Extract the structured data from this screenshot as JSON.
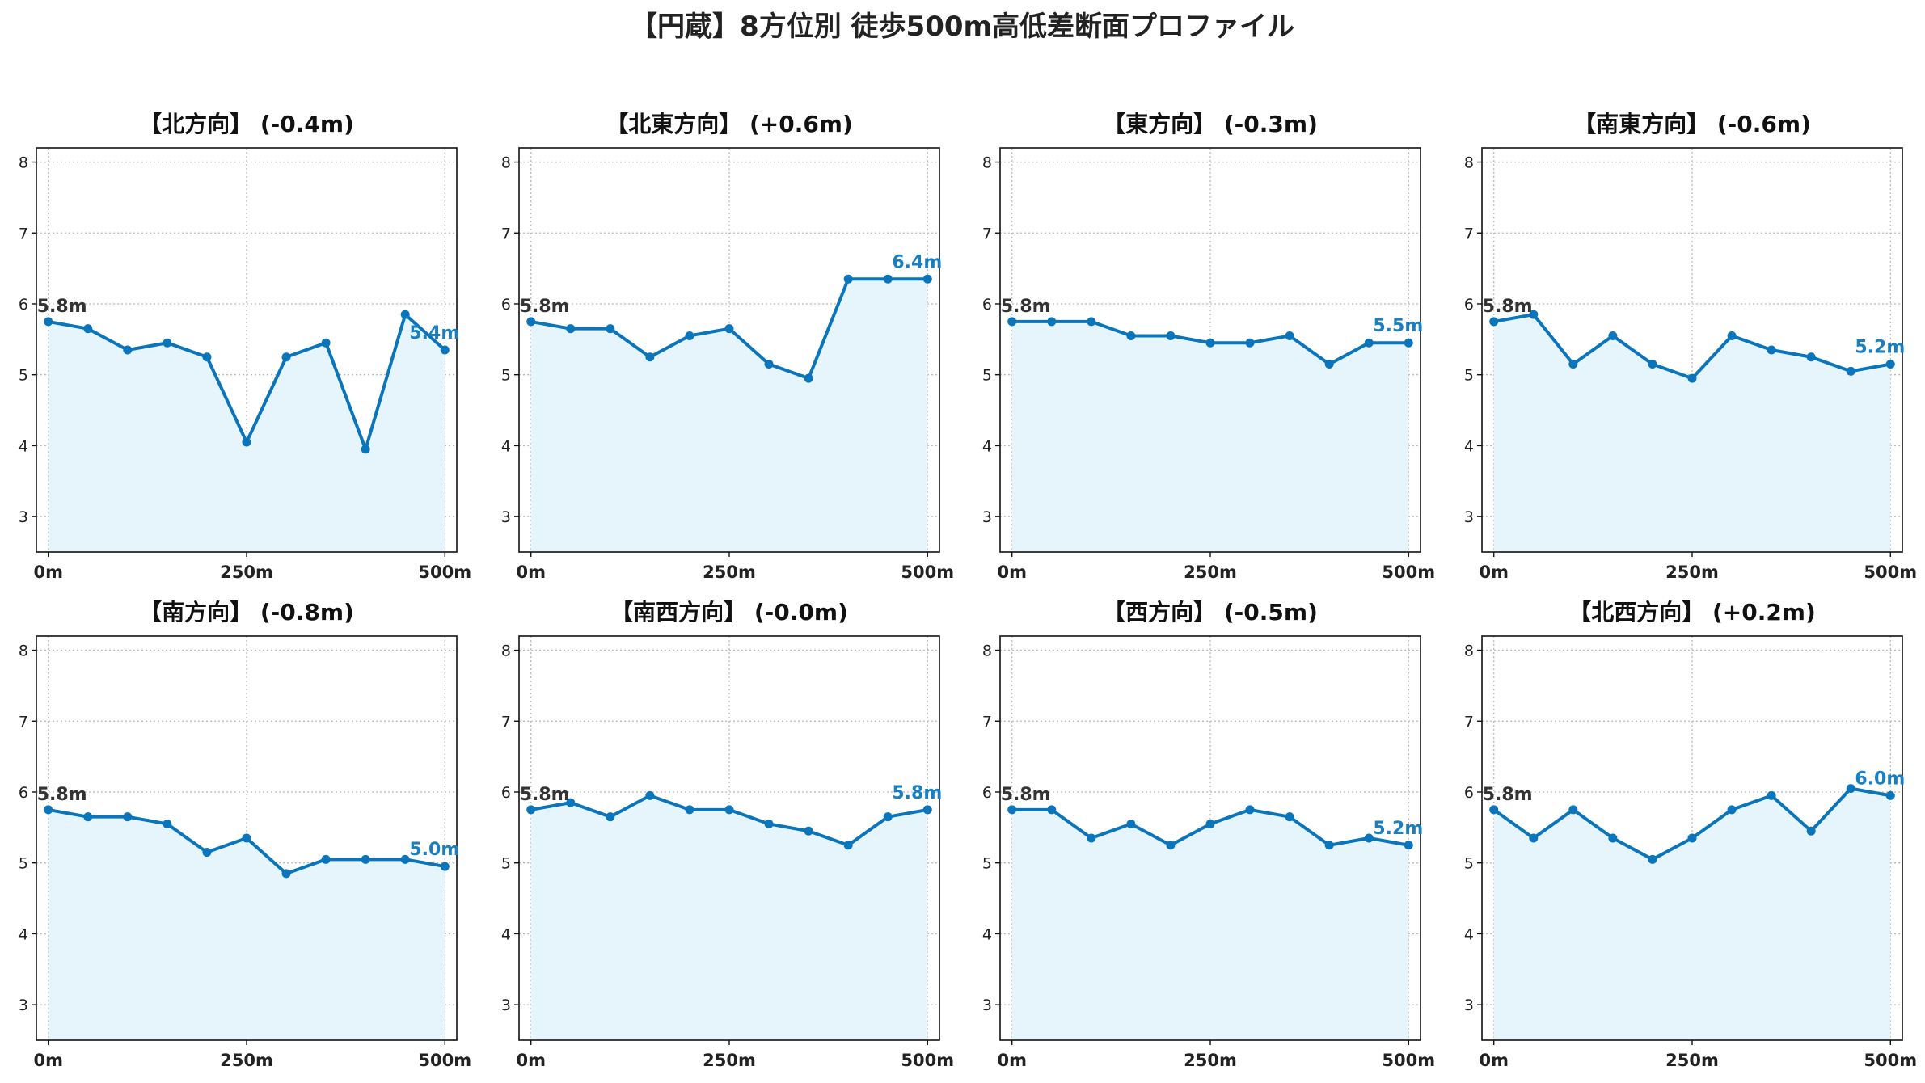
{
  "figure": {
    "suptitle": "【円蔵】8方位別 徒歩500m高低差断面プロファイル"
  },
  "colors": {
    "line": "#0a75bb",
    "fill": "#e6f5fb",
    "end_label": "#1a7fc0",
    "start_label": "#333333",
    "grid": "#bbbbbb"
  },
  "chart_data": [
    {
      "type": "area",
      "title": "【北方向】 (-0.4m)",
      "x": [
        0,
        50,
        100,
        150,
        200,
        250,
        300,
        350,
        400,
        450,
        500
      ],
      "y": [
        5.75,
        5.65,
        5.35,
        5.45,
        5.25,
        4.05,
        5.25,
        5.45,
        3.95,
        5.85,
        5.35
      ],
      "start_label": "5.8m",
      "end_label": "5.4m",
      "xticks": [
        "0m",
        "250m",
        "500m"
      ],
      "xtick_values": [
        0,
        250,
        500
      ],
      "yticks": [
        "3",
        "4",
        "5",
        "6",
        "7",
        "8"
      ],
      "ytick_values": [
        3,
        4,
        5,
        6,
        7,
        8
      ],
      "ylim": [
        2.5,
        8.2
      ],
      "xlim": [
        -15,
        515
      ],
      "grid": true
    },
    {
      "type": "area",
      "title": "【北東方向】 (+0.6m)",
      "x": [
        0,
        50,
        100,
        150,
        200,
        250,
        300,
        350,
        400,
        450,
        500
      ],
      "y": [
        5.75,
        5.65,
        5.65,
        5.25,
        5.55,
        5.65,
        5.15,
        4.95,
        6.35,
        6.35,
        6.35
      ],
      "start_label": "5.8m",
      "end_label": "6.4m",
      "xticks": [
        "0m",
        "250m",
        "500m"
      ],
      "xtick_values": [
        0,
        250,
        500
      ],
      "yticks": [
        "3",
        "4",
        "5",
        "6",
        "7",
        "8"
      ],
      "ytick_values": [
        3,
        4,
        5,
        6,
        7,
        8
      ],
      "ylim": [
        2.5,
        8.2
      ],
      "xlim": [
        -15,
        515
      ],
      "grid": true
    },
    {
      "type": "area",
      "title": "【東方向】 (-0.3m)",
      "x": [
        0,
        50,
        100,
        150,
        200,
        250,
        300,
        350,
        400,
        450,
        500
      ],
      "y": [
        5.75,
        5.75,
        5.75,
        5.55,
        5.55,
        5.45,
        5.45,
        5.55,
        5.15,
        5.45,
        5.45
      ],
      "start_label": "5.8m",
      "end_label": "5.5m",
      "xticks": [
        "0m",
        "250m",
        "500m"
      ],
      "xtick_values": [
        0,
        250,
        500
      ],
      "yticks": [
        "3",
        "4",
        "5",
        "6",
        "7",
        "8"
      ],
      "ytick_values": [
        3,
        4,
        5,
        6,
        7,
        8
      ],
      "ylim": [
        2.5,
        8.2
      ],
      "xlim": [
        -15,
        515
      ],
      "grid": true
    },
    {
      "type": "area",
      "title": "【南東方向】 (-0.6m)",
      "x": [
        0,
        50,
        100,
        150,
        200,
        250,
        300,
        350,
        400,
        450,
        500
      ],
      "y": [
        5.75,
        5.85,
        5.15,
        5.55,
        5.15,
        4.95,
        5.55,
        5.35,
        5.25,
        5.05,
        5.15
      ],
      "start_label": "5.8m",
      "end_label": "5.2m",
      "xticks": [
        "0m",
        "250m",
        "500m"
      ],
      "xtick_values": [
        0,
        250,
        500
      ],
      "yticks": [
        "3",
        "4",
        "5",
        "6",
        "7",
        "8"
      ],
      "ytick_values": [
        3,
        4,
        5,
        6,
        7,
        8
      ],
      "ylim": [
        2.5,
        8.2
      ],
      "xlim": [
        -15,
        515
      ],
      "grid": true
    },
    {
      "type": "area",
      "title": "【南方向】 (-0.8m)",
      "x": [
        0,
        50,
        100,
        150,
        200,
        250,
        300,
        350,
        400,
        450,
        500
      ],
      "y": [
        5.75,
        5.65,
        5.65,
        5.55,
        5.15,
        5.35,
        4.85,
        5.05,
        5.05,
        5.05,
        4.95
      ],
      "start_label": "5.8m",
      "end_label": "5.0m",
      "xticks": [
        "0m",
        "250m",
        "500m"
      ],
      "xtick_values": [
        0,
        250,
        500
      ],
      "yticks": [
        "3",
        "4",
        "5",
        "6",
        "7",
        "8"
      ],
      "ytick_values": [
        3,
        4,
        5,
        6,
        7,
        8
      ],
      "ylim": [
        2.5,
        8.2
      ],
      "xlim": [
        -15,
        515
      ],
      "grid": true
    },
    {
      "type": "area",
      "title": "【南西方向】 (-0.0m)",
      "x": [
        0,
        50,
        100,
        150,
        200,
        250,
        300,
        350,
        400,
        450,
        500
      ],
      "y": [
        5.75,
        5.85,
        5.65,
        5.95,
        5.75,
        5.75,
        5.55,
        5.45,
        5.25,
        5.65,
        5.75
      ],
      "start_label": "5.8m",
      "end_label": "5.8m",
      "xticks": [
        "0m",
        "250m",
        "500m"
      ],
      "xtick_values": [
        0,
        250,
        500
      ],
      "yticks": [
        "3",
        "4",
        "5",
        "6",
        "7",
        "8"
      ],
      "ytick_values": [
        3,
        4,
        5,
        6,
        7,
        8
      ],
      "ylim": [
        2.5,
        8.2
      ],
      "xlim": [
        -15,
        515
      ],
      "grid": true
    },
    {
      "type": "area",
      "title": "【西方向】 (-0.5m)",
      "x": [
        0,
        50,
        100,
        150,
        200,
        250,
        300,
        350,
        400,
        450,
        500
      ],
      "y": [
        5.75,
        5.75,
        5.35,
        5.55,
        5.25,
        5.55,
        5.75,
        5.65,
        5.25,
        5.35,
        5.25
      ],
      "start_label": "5.8m",
      "end_label": "5.2m",
      "xticks": [
        "0m",
        "250m",
        "500m"
      ],
      "xtick_values": [
        0,
        250,
        500
      ],
      "yticks": [
        "3",
        "4",
        "5",
        "6",
        "7",
        "8"
      ],
      "ytick_values": [
        3,
        4,
        5,
        6,
        7,
        8
      ],
      "ylim": [
        2.5,
        8.2
      ],
      "xlim": [
        -15,
        515
      ],
      "grid": true
    },
    {
      "type": "area",
      "title": "【北西方向】 (+0.2m)",
      "x": [
        0,
        50,
        100,
        150,
        200,
        250,
        300,
        350,
        400,
        450,
        500
      ],
      "y": [
        5.75,
        5.35,
        5.75,
        5.35,
        5.05,
        5.35,
        5.75,
        5.95,
        5.45,
        6.05,
        5.95
      ],
      "start_label": "5.8m",
      "end_label": "6.0m",
      "xticks": [
        "0m",
        "250m",
        "500m"
      ],
      "xtick_values": [
        0,
        250,
        500
      ],
      "yticks": [
        "3",
        "4",
        "5",
        "6",
        "7",
        "8"
      ],
      "ytick_values": [
        3,
        4,
        5,
        6,
        7,
        8
      ],
      "ylim": [
        2.5,
        8.2
      ],
      "xlim": [
        -15,
        515
      ],
      "grid": true
    }
  ]
}
